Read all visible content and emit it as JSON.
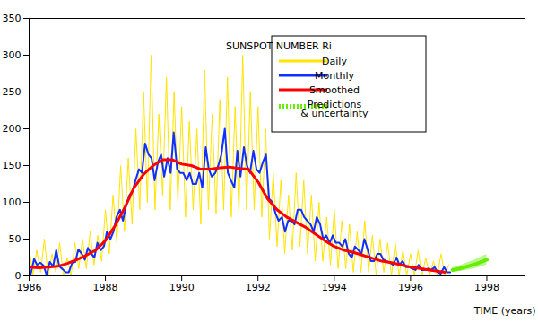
{
  "chart_data": {
    "type": "line",
    "x_label": "TIME (years)",
    "legend_title": "SUNSPOT NUMBER Ri",
    "legend": "top-right",
    "xlim": [
      1986,
      1999
    ],
    "xticks": [
      1986,
      1988,
      1990,
      1992,
      1994,
      1996,
      1998
    ],
    "ylim": [
      0,
      350
    ],
    "yticks": [
      0,
      50,
      100,
      150,
      200,
      250,
      300,
      350
    ],
    "series": [
      {
        "name": "Daily",
        "color": "#ffe400",
        "line_style": "solid",
        "x": [
          1986.0,
          1986.1,
          1986.2,
          1986.3,
          1986.4,
          1986.5,
          1986.6,
          1986.7,
          1986.8,
          1986.9,
          1987.0,
          1987.1,
          1987.2,
          1987.3,
          1987.4,
          1987.5,
          1987.6,
          1987.7,
          1987.8,
          1987.9,
          1988.0,
          1988.1,
          1988.2,
          1988.3,
          1988.4,
          1988.5,
          1988.6,
          1988.7,
          1988.8,
          1988.9,
          1989.0,
          1989.1,
          1989.2,
          1989.3,
          1989.4,
          1989.5,
          1989.6,
          1989.7,
          1989.8,
          1989.9,
          1990.0,
          1990.1,
          1990.2,
          1990.3,
          1990.4,
          1990.5,
          1990.6,
          1990.7,
          1990.8,
          1990.9,
          1991.0,
          1991.1,
          1991.2,
          1991.3,
          1991.4,
          1991.5,
          1991.6,
          1991.7,
          1991.8,
          1991.9,
          1992.0,
          1992.1,
          1992.2,
          1992.3,
          1992.4,
          1992.5,
          1992.6,
          1992.7,
          1992.8,
          1992.9,
          1993.0,
          1993.1,
          1993.2,
          1993.3,
          1993.4,
          1993.5,
          1993.6,
          1993.7,
          1993.8,
          1993.9,
          1994.0,
          1994.1,
          1994.2,
          1994.3,
          1994.4,
          1994.5,
          1994.6,
          1994.7,
          1994.8,
          1994.9,
          1995.0,
          1995.1,
          1995.2,
          1995.3,
          1995.4,
          1995.5,
          1995.6,
          1995.7,
          1995.8,
          1995.9,
          1996.0,
          1996.1,
          1996.2,
          1996.3,
          1996.4,
          1996.5,
          1996.6,
          1996.7,
          1996.8,
          1996.9,
          1997.0
        ],
        "values": [
          40,
          0,
          35,
          5,
          50,
          0,
          30,
          5,
          45,
          0,
          25,
          0,
          45,
          10,
          50,
          10,
          60,
          15,
          55,
          20,
          90,
          30,
          110,
          45,
          150,
          60,
          160,
          70,
          200,
          90,
          250,
          100,
          300,
          90,
          220,
          110,
          270,
          90,
          250,
          100,
          230,
          80,
          210,
          90,
          200,
          70,
          280,
          90,
          220,
          85,
          240,
          90,
          270,
          80,
          230,
          85,
          300,
          90,
          250,
          90,
          230,
          80,
          200,
          50,
          140,
          40,
          130,
          30,
          110,
          35,
          140,
          40,
          130,
          30,
          110,
          20,
          100,
          20,
          80,
          15,
          90,
          10,
          75,
          10,
          70,
          5,
          60,
          5,
          75,
          5,
          55,
          0,
          50,
          5,
          45,
          0,
          45,
          0,
          35,
          0,
          30,
          0,
          35,
          0,
          25,
          0,
          20,
          0,
          30,
          0,
          15
        ]
      },
      {
        "name": "Monthly",
        "color": "#1030ff",
        "line_style": "solid",
        "x": [
          1986.04,
          1986.13,
          1986.21,
          1986.29,
          1986.38,
          1986.46,
          1986.54,
          1986.63,
          1986.71,
          1986.79,
          1986.88,
          1986.96,
          1987.04,
          1987.13,
          1987.21,
          1987.29,
          1987.38,
          1987.46,
          1987.54,
          1987.63,
          1987.71,
          1987.79,
          1987.88,
          1987.96,
          1988.04,
          1988.13,
          1988.21,
          1988.29,
          1988.38,
          1988.46,
          1988.54,
          1988.63,
          1988.71,
          1988.79,
          1988.88,
          1988.96,
          1989.04,
          1989.13,
          1989.21,
          1989.29,
          1989.38,
          1989.46,
          1989.54,
          1989.63,
          1989.71,
          1989.79,
          1989.88,
          1989.96,
          1990.04,
          1990.13,
          1990.21,
          1990.29,
          1990.38,
          1990.46,
          1990.54,
          1990.63,
          1990.71,
          1990.79,
          1990.88,
          1990.96,
          1991.04,
          1991.13,
          1991.21,
          1991.29,
          1991.38,
          1991.46,
          1991.54,
          1991.63,
          1991.71,
          1991.79,
          1991.88,
          1991.96,
          1992.04,
          1992.13,
          1992.21,
          1992.29,
          1992.38,
          1992.46,
          1992.54,
          1992.63,
          1992.71,
          1992.79,
          1992.88,
          1992.96,
          1993.04,
          1993.13,
          1993.21,
          1993.29,
          1993.38,
          1993.46,
          1993.54,
          1993.63,
          1993.71,
          1993.79,
          1993.88,
          1993.96,
          1994.04,
          1994.13,
          1994.21,
          1994.29,
          1994.38,
          1994.46,
          1994.54,
          1994.63,
          1994.71,
          1994.79,
          1994.88,
          1994.96,
          1995.04,
          1995.13,
          1995.21,
          1995.29,
          1995.38,
          1995.46,
          1995.54,
          1995.63,
          1995.71,
          1995.79,
          1995.88,
          1995.96,
          1996.04,
          1996.13,
          1996.21,
          1996.29,
          1996.38,
          1996.46,
          1996.54,
          1996.63,
          1996.71,
          1996.79,
          1996.88,
          1996.96,
          1997.04
        ],
        "values": [
          2,
          23,
          15,
          18,
          14,
          1,
          19,
          13,
          35,
          13,
          9,
          5,
          5,
          18,
          19,
          36,
          30,
          22,
          38,
          30,
          25,
          45,
          35,
          40,
          60,
          50,
          60,
          80,
          90,
          75,
          95,
          110,
          115,
          130,
          145,
          140,
          180,
          165,
          160,
          130,
          155,
          165,
          135,
          160,
          140,
          195,
          145,
          140,
          140,
          130,
          140,
          125,
          125,
          140,
          120,
          175,
          145,
          135,
          140,
          150,
          165,
          200,
          140,
          130,
          120,
          170,
          135,
          175,
          150,
          140,
          170,
          145,
          140,
          155,
          165,
          105,
          100,
          85,
          75,
          80,
          60,
          75,
          75,
          70,
          90,
          90,
          80,
          75,
          70,
          60,
          80,
          70,
          50,
          55,
          45,
          55,
          45,
          45,
          40,
          50,
          30,
          25,
          40,
          35,
          30,
          50,
          35,
          20,
          20,
          30,
          30,
          22,
          20,
          18,
          15,
          25,
          15,
          20,
          12,
          12,
          10,
          8,
          15,
          8,
          8,
          10,
          8,
          12,
          5,
          3,
          12,
          5,
          5
        ]
      },
      {
        "name": "Smoothed",
        "color": "#ff0000",
        "line_style": "solid",
        "x": [
          1986.0,
          1986.25,
          1986.5,
          1986.75,
          1987.0,
          1987.25,
          1987.5,
          1987.75,
          1988.0,
          1988.25,
          1988.5,
          1988.75,
          1989.0,
          1989.25,
          1989.5,
          1989.75,
          1990.0,
          1990.25,
          1990.5,
          1990.75,
          1991.0,
          1991.25,
          1991.5,
          1991.75,
          1992.0,
          1992.25,
          1992.5,
          1992.75,
          1993.0,
          1993.25,
          1993.5,
          1993.75,
          1994.0,
          1994.25,
          1994.5,
          1994.75,
          1995.0,
          1995.25,
          1995.5,
          1995.75,
          1996.0,
          1996.25,
          1996.5,
          1996.75,
          1996.9
        ],
        "values": [
          12,
          11,
          12,
          13,
          17,
          22,
          28,
          35,
          48,
          68,
          92,
          120,
          138,
          150,
          158,
          158,
          152,
          150,
          145,
          145,
          147,
          148,
          146,
          145,
          128,
          105,
          90,
          80,
          73,
          66,
          57,
          48,
          40,
          35,
          32,
          28,
          24,
          20,
          18,
          15,
          12,
          10,
          8,
          6,
          5
        ]
      },
      {
        "name": "Predictions\n& uncertainty",
        "color": "#66ee00",
        "line_style": "dotted",
        "x": [
          1997.1,
          1997.3,
          1997.5,
          1997.7,
          1997.9,
          1998.0
        ],
        "values": [
          8,
          10,
          13,
          16,
          20,
          22
        ],
        "lower": [
          5,
          6,
          8,
          10,
          13,
          15
        ],
        "upper": [
          11,
          14,
          18,
          22,
          27,
          29
        ]
      }
    ]
  }
}
